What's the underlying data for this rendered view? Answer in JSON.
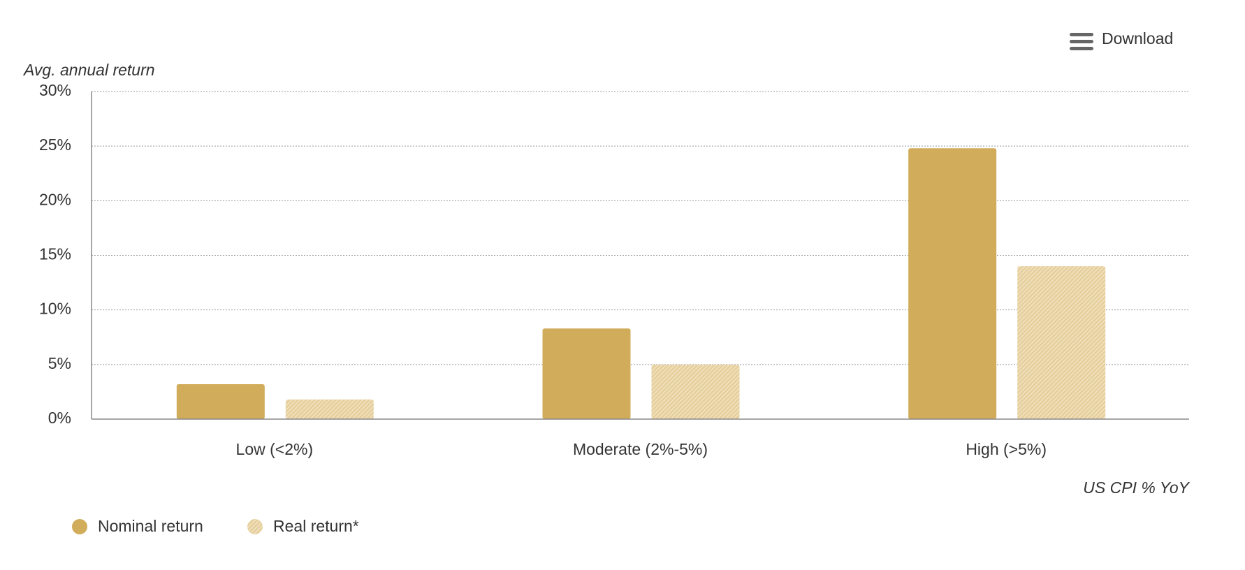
{
  "chart_data": {
    "type": "bar",
    "menu": "Download",
    "y_axis_label": "Avg. annual return",
    "x_axis_label": "US CPI % YoY",
    "categories": [
      "Low (<2%)",
      "Moderate (2%-5%)",
      "High (>5%)"
    ],
    "series": [
      {
        "name": "Nominal return",
        "color": "#d1ac5a",
        "values": [
          3.2,
          8.3,
          24.8
        ]
      },
      {
        "name": "Real return*",
        "color": "#e6cf9d",
        "pattern": "hatch",
        "values": [
          1.8,
          5.0,
          14.0
        ]
      }
    ],
    "ylim": [
      0,
      30
    ],
    "yticks": [
      {
        "value": 0,
        "label": "0%"
      },
      {
        "value": 5,
        "label": "5%"
      },
      {
        "value": 10,
        "label": "10%"
      },
      {
        "value": 15,
        "label": "15%"
      },
      {
        "value": 20,
        "label": "20%"
      },
      {
        "value": 25,
        "label": "25%"
      },
      {
        "value": 30,
        "label": "30%"
      }
    ],
    "grid": true
  }
}
